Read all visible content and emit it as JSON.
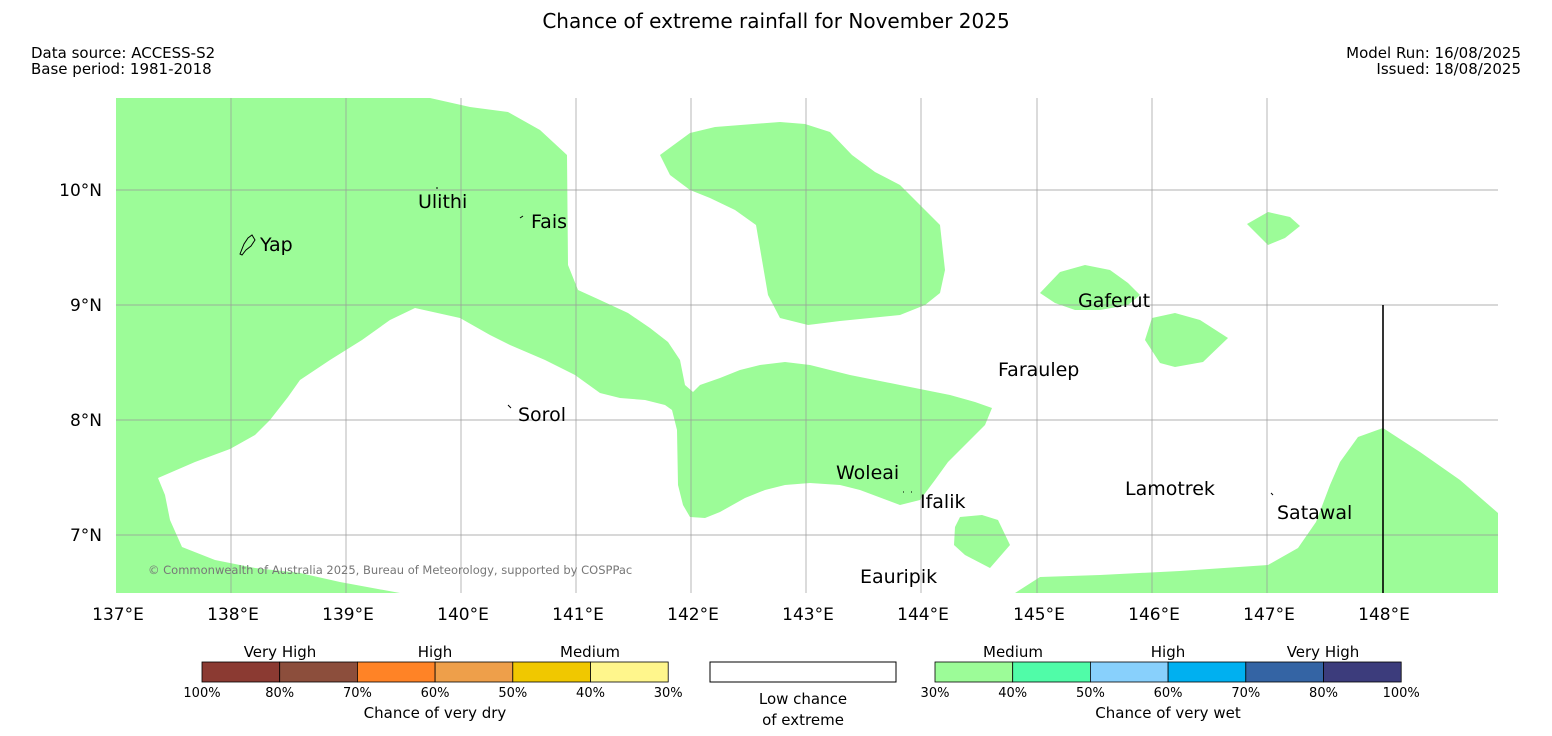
{
  "title": "Chance of extreme rainfall for November 2025",
  "meta": {
    "data_source": "Data source: ACCESS-S2",
    "base_period": "Base period: 1981-2018",
    "model_run": "Model Run: 16/08/2025",
    "issued": "Issued: 18/08/2025"
  },
  "map": {
    "lon_labels": [
      "137°E",
      "138°E",
      "139°E",
      "140°E",
      "141°E",
      "142°E",
      "143°E",
      "144°E",
      "145°E",
      "146°E",
      "147°E",
      "148°E"
    ],
    "lat_labels": [
      "10°N",
      "9°N",
      "8°N",
      "7°N"
    ],
    "places": {
      "yap": "Yap",
      "ulithi": "Ulithi",
      "fais": "Fais",
      "gaferut": "Gaferut",
      "faraulep": "Faraulep",
      "sorol": "Sorol",
      "woleai": "Woleai",
      "ifalik": "Ifalik",
      "lamotrek": "Lamotrek",
      "satawal": "Satawal",
      "eauripik": "Eauripik"
    },
    "copyright": "© Commonwealth of Australia 2025, Bureau of Meteorology, supported by COSPPac",
    "medium_wet_color": "#9cfc98",
    "high_wet_color": "#50fca8"
  },
  "legend": {
    "dry": {
      "categories": [
        "Very High",
        "High",
        "Medium"
      ],
      "colors": [
        "#8b3a32",
        "#8c4e3c",
        "#ff8326",
        "#ee9f4a",
        "#f0c800",
        "#fff68c"
      ],
      "ticks": [
        "100%",
        "80%",
        "70%",
        "60%",
        "50%",
        "40%",
        "30%"
      ],
      "title": "Chance of very dry"
    },
    "low": {
      "line1": "Low chance",
      "line2": "of extreme"
    },
    "wet": {
      "categories": [
        "Medium",
        "High",
        "Very High"
      ],
      "colors": [
        "#9cfc98",
        "#50fca8",
        "#88d0fc",
        "#00b0f0",
        "#3464a4",
        "#3c3c7c"
      ],
      "ticks": [
        "30%",
        "40%",
        "50%",
        "60%",
        "70%",
        "80%",
        "100%"
      ],
      "title": "Chance of very wet"
    }
  }
}
